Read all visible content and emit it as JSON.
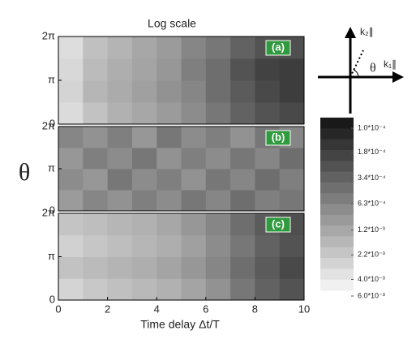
{
  "chart_data": {
    "type": "heatmap",
    "title": "Log scale",
    "xlabel": "Time delay  Δt/T",
    "ylabel": "θ",
    "xlim": [
      0,
      10
    ],
    "xticks": [
      0,
      2,
      4,
      6,
      8,
      10
    ],
    "ylim": [
      0,
      6.28318
    ],
    "yticks": [
      {
        "value": 0,
        "label": "0"
      },
      {
        "value": 3.14159,
        "label": "π"
      },
      {
        "value": 6.28318,
        "label": "2π"
      }
    ],
    "log_color_scale": true,
    "colorbar": {
      "lim": [
        0.0001,
        0.006
      ],
      "ticks": [
        {
          "value": 0.0001,
          "label": "1.0*10⁻⁴"
        },
        {
          "value": 0.00018,
          "label": "1.8*10⁻⁴"
        },
        {
          "value": 0.00034,
          "label": "3.4*10⁻⁴"
        },
        {
          "value": 0.00063,
          "label": "6.3*10⁻⁴"
        },
        {
          "value": 0.0012,
          "label": "1.2*10⁻³"
        },
        {
          "value": 0.0022,
          "label": "2.2*10⁻³"
        },
        {
          "value": 0.004,
          "label": "4.0*10⁻³"
        },
        {
          "value": 0.006,
          "label": "6.0*10⁻³"
        }
      ]
    },
    "inset": {
      "k2": "k₂∥",
      "k1": "k₁∥",
      "angle": "θ"
    },
    "panels": [
      {
        "label": "(a)",
        "values": [
          [
            0.004,
            0.0025,
            0.0018,
            0.0015,
            0.0012,
            0.0009,
            0.0006,
            0.0004,
            0.0003,
            0.00025
          ],
          [
            0.0035,
            0.002,
            0.0016,
            0.0013,
            0.001,
            0.0008,
            0.0005,
            0.00035,
            0.00025,
            0.0002
          ],
          [
            0.0038,
            0.0022,
            0.0017,
            0.0014,
            0.0011,
            0.0007,
            0.0005,
            0.0003,
            0.00022,
            0.0002
          ],
          [
            0.0042,
            0.0024,
            0.0019,
            0.0015,
            0.0012,
            0.0008,
            0.0006,
            0.0004,
            0.0003,
            0.00028
          ]
        ]
      },
      {
        "label": "(b)",
        "values": [
          [
            0.0012,
            0.0008,
            0.001,
            0.0007,
            0.0009,
            0.0006,
            0.0008,
            0.0005,
            0.0007,
            0.0006
          ],
          [
            0.0009,
            0.0011,
            0.0006,
            0.0009,
            0.0007,
            0.001,
            0.0006,
            0.0008,
            0.0005,
            0.0007
          ],
          [
            0.0011,
            0.0007,
            0.0009,
            0.0006,
            0.001,
            0.0007,
            0.0009,
            0.0006,
            0.0008,
            0.0005
          ],
          [
            0.0008,
            0.001,
            0.0007,
            0.0011,
            0.0006,
            0.0009,
            0.0007,
            0.001,
            0.0006,
            0.0008
          ]
        ]
      },
      {
        "label": "(c)",
        "values": [
          [
            0.0035,
            0.0028,
            0.0024,
            0.0021,
            0.0018,
            0.0014,
            0.001,
            0.0006,
            0.0004,
            0.0003
          ],
          [
            0.0025,
            0.0022,
            0.0019,
            0.0017,
            0.0014,
            0.0011,
            0.0008,
            0.0005,
            0.00035,
            0.00025
          ],
          [
            0.0033,
            0.0027,
            0.0023,
            0.002,
            0.0017,
            0.0013,
            0.0009,
            0.0006,
            0.0004,
            0.0003
          ],
          [
            0.0026,
            0.0023,
            0.002,
            0.0018,
            0.0015,
            0.0011,
            0.0008,
            0.0005,
            0.00035,
            0.00028
          ]
        ]
      }
    ]
  }
}
